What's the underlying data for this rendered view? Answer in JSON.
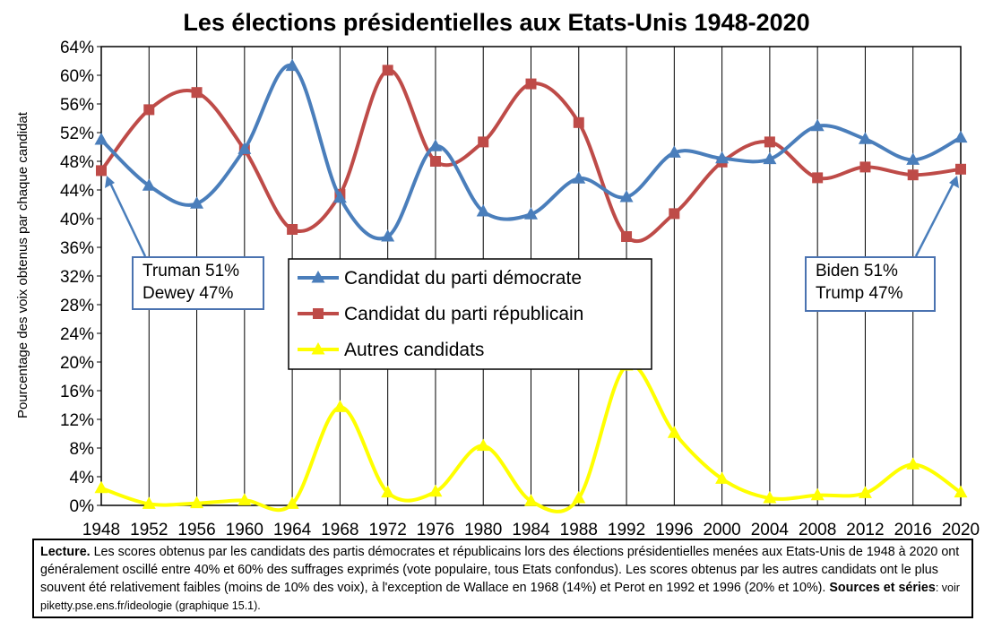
{
  "title": "Les élections présidentielles aux Etats-Unis 1948-2020",
  "chart_data": {
    "type": "line",
    "title": "Les élections présidentielles aux Etats-Unis 1948-2020",
    "xlabel": "",
    "ylabel": "Pourcentage des voix obtenus par chaque candidat",
    "ylim": [
      0,
      64
    ],
    "y_ticks": [
      "0%",
      "4%",
      "8%",
      "12%",
      "16%",
      "20%",
      "24%",
      "28%",
      "32%",
      "36%",
      "40%",
      "44%",
      "48%",
      "52%",
      "56%",
      "60%",
      "64%"
    ],
    "x": [
      1948,
      1952,
      1956,
      1960,
      1964,
      1968,
      1972,
      1976,
      1980,
      1984,
      1988,
      1992,
      1996,
      2000,
      2004,
      2008,
      2012,
      2016,
      2020
    ],
    "grid": "vertical",
    "legend_position": "center",
    "series": [
      {
        "name": "Candidat du parti démocrate",
        "color": "#4a7ebb",
        "marker": "triangle",
        "values": [
          51,
          44.6,
          42.1,
          49.7,
          61.3,
          42.9,
          37.5,
          50.1,
          41,
          40.6,
          45.6,
          43,
          49.2,
          48.4,
          48.3,
          52.9,
          51.1,
          48.2,
          51.3
        ]
      },
      {
        "name": "Candidat du parti républicain",
        "color": "#be4b48",
        "marker": "square",
        "values": [
          46.7,
          55.2,
          57.6,
          49.6,
          38.5,
          43.4,
          60.7,
          48,
          50.7,
          58.8,
          53.4,
          37.5,
          40.7,
          47.9,
          50.7,
          45.7,
          47.2,
          46.1,
          46.9
        ]
      },
      {
        "name": "Autres candidats",
        "color": "#ffff00",
        "marker": "triangle",
        "values": [
          2.4,
          0.2,
          0.3,
          0.7,
          0.2,
          13.7,
          1.8,
          1.9,
          8.3,
          0.6,
          1,
          19.5,
          10.1,
          3.7,
          1,
          1.4,
          1.7,
          5.7,
          1.8
        ]
      }
    ]
  },
  "callouts": {
    "left": {
      "line1": "Truman 51%",
      "line2": "Dewey 47%"
    },
    "right": {
      "line1": "Biden 51%",
      "line2": "Trump 47%"
    }
  },
  "note": {
    "lecture_label": "Lecture.",
    "text": " Les scores obtenus par les candidats des partis démocrates et républicains lors des élections présidentielles menées aux Etats-Unis de 1948 à 2020 ont généralement oscillé entre 40% et 60% des suffrages exprimés (vote populaire, tous Etats confondus). Les scores obtenus par les autres candidats ont le plus souvent été relativement faibles (moins de 10% des voix), à l'exception de Wallace en 1968 (14%) et Perot en 1992 et 1996 (20% et 10%). ",
    "source_label": "Sources et séries",
    "source_text": ": voir piketty.pse.ens.fr/ideologie (graphique 15.1)."
  }
}
